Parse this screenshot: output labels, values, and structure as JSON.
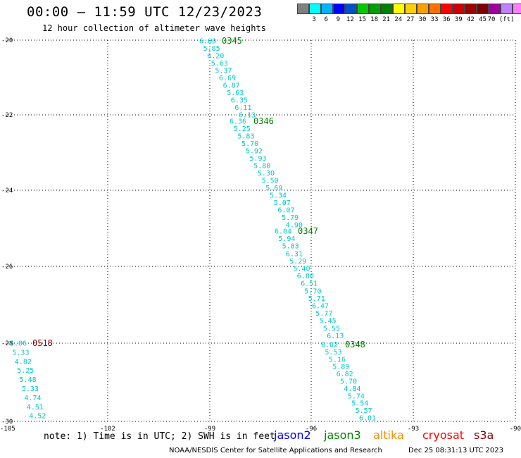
{
  "header": {
    "title": "00:00 – 11:59 UTC 12/23/2023",
    "subtitle": "12 hour collection of altimeter wave heights"
  },
  "legend": {
    "colors": [
      "#808080",
      "#00ffff",
      "#00b4ff",
      "#0000ff",
      "#0050c8",
      "#00c800",
      "#00a000",
      "#008000",
      "#ffff00",
      "#ffd000",
      "#ffa000",
      "#ff7000",
      "#ff0000",
      "#d00000",
      "#a00000",
      "#800000",
      "#a000a0",
      "#c080ff",
      "#ff80ff",
      "#000000"
    ],
    "labels": [
      "3",
      "6",
      "9",
      "12",
      "15",
      "18",
      "21",
      "24",
      "27",
      "30",
      "33",
      "36",
      "39",
      "42",
      "45",
      "70 (ft)"
    ]
  },
  "map": {
    "lon_range": [
      -105,
      -90
    ],
    "lat_range": [
      -30,
      -20
    ],
    "x_ticks": [
      "-105",
      "-102",
      "-99",
      "-96",
      "-93",
      "-90"
    ],
    "y_ticks": [
      "-20",
      "-22",
      "-24",
      "-26",
      "-28",
      "-30"
    ],
    "track_color": "#00d0d0",
    "tracks": [
      {
        "time": "0345",
        "time_color": "#008000",
        "values": [
          "6.60",
          "5.85",
          "6.20",
          "5.63",
          "5.37",
          "6.69",
          "6.87",
          "5.63",
          "6.35",
          "6.11",
          "6.13"
        ]
      },
      {
        "time": "0346",
        "time_color": "#008000",
        "values": [
          "6.36",
          "5.25",
          "5.83",
          "5.70",
          "5.92",
          "5.93",
          "5.80",
          "5.30",
          "5.50",
          "5.69",
          "5.34",
          "5.07",
          "6.07",
          "5.79",
          "4.90"
        ]
      },
      {
        "time": "0347",
        "time_color": "#008000",
        "values": [
          "6.04",
          "5.94",
          "5.83",
          "6.31",
          "5.29",
          "5.40",
          "6.80",
          "6.51",
          "5.70",
          "5.71",
          "6.47",
          "5.77",
          "5.45",
          "5.55",
          "6.13"
        ]
      },
      {
        "time": "0348",
        "time_color": "#008000",
        "values": [
          "6.02",
          "5.53",
          "5.16",
          "5.89",
          "6.82",
          "5.70",
          "4.84",
          "5.74",
          "5.54",
          "5.57",
          "6.01"
        ]
      },
      {
        "time": "0518",
        "time_color": "#8b0000",
        "values": [
          "5.06",
          "5.33",
          "4.82",
          "5.25",
          "5.48",
          "5.33",
          "4.74",
          "4.51",
          "4.52"
        ]
      }
    ]
  },
  "footer": {
    "note": "note: 1) Time is in UTC; 2) SWH is in feet",
    "satellites": [
      {
        "name": "jason2",
        "color": "#0000ff"
      },
      {
        "name": "jason3",
        "color": "#008000"
      },
      {
        "name": "altika",
        "color": "#ff8c00"
      },
      {
        "name": "cryosat",
        "color": "#ff0000"
      },
      {
        "name": "s3a",
        "color": "#8b0000"
      }
    ],
    "credit": "NOAA/NESDIS Center for Satellite Applications and Research",
    "timestamp": "Dec 25 08:31:13 UTC 2023"
  }
}
